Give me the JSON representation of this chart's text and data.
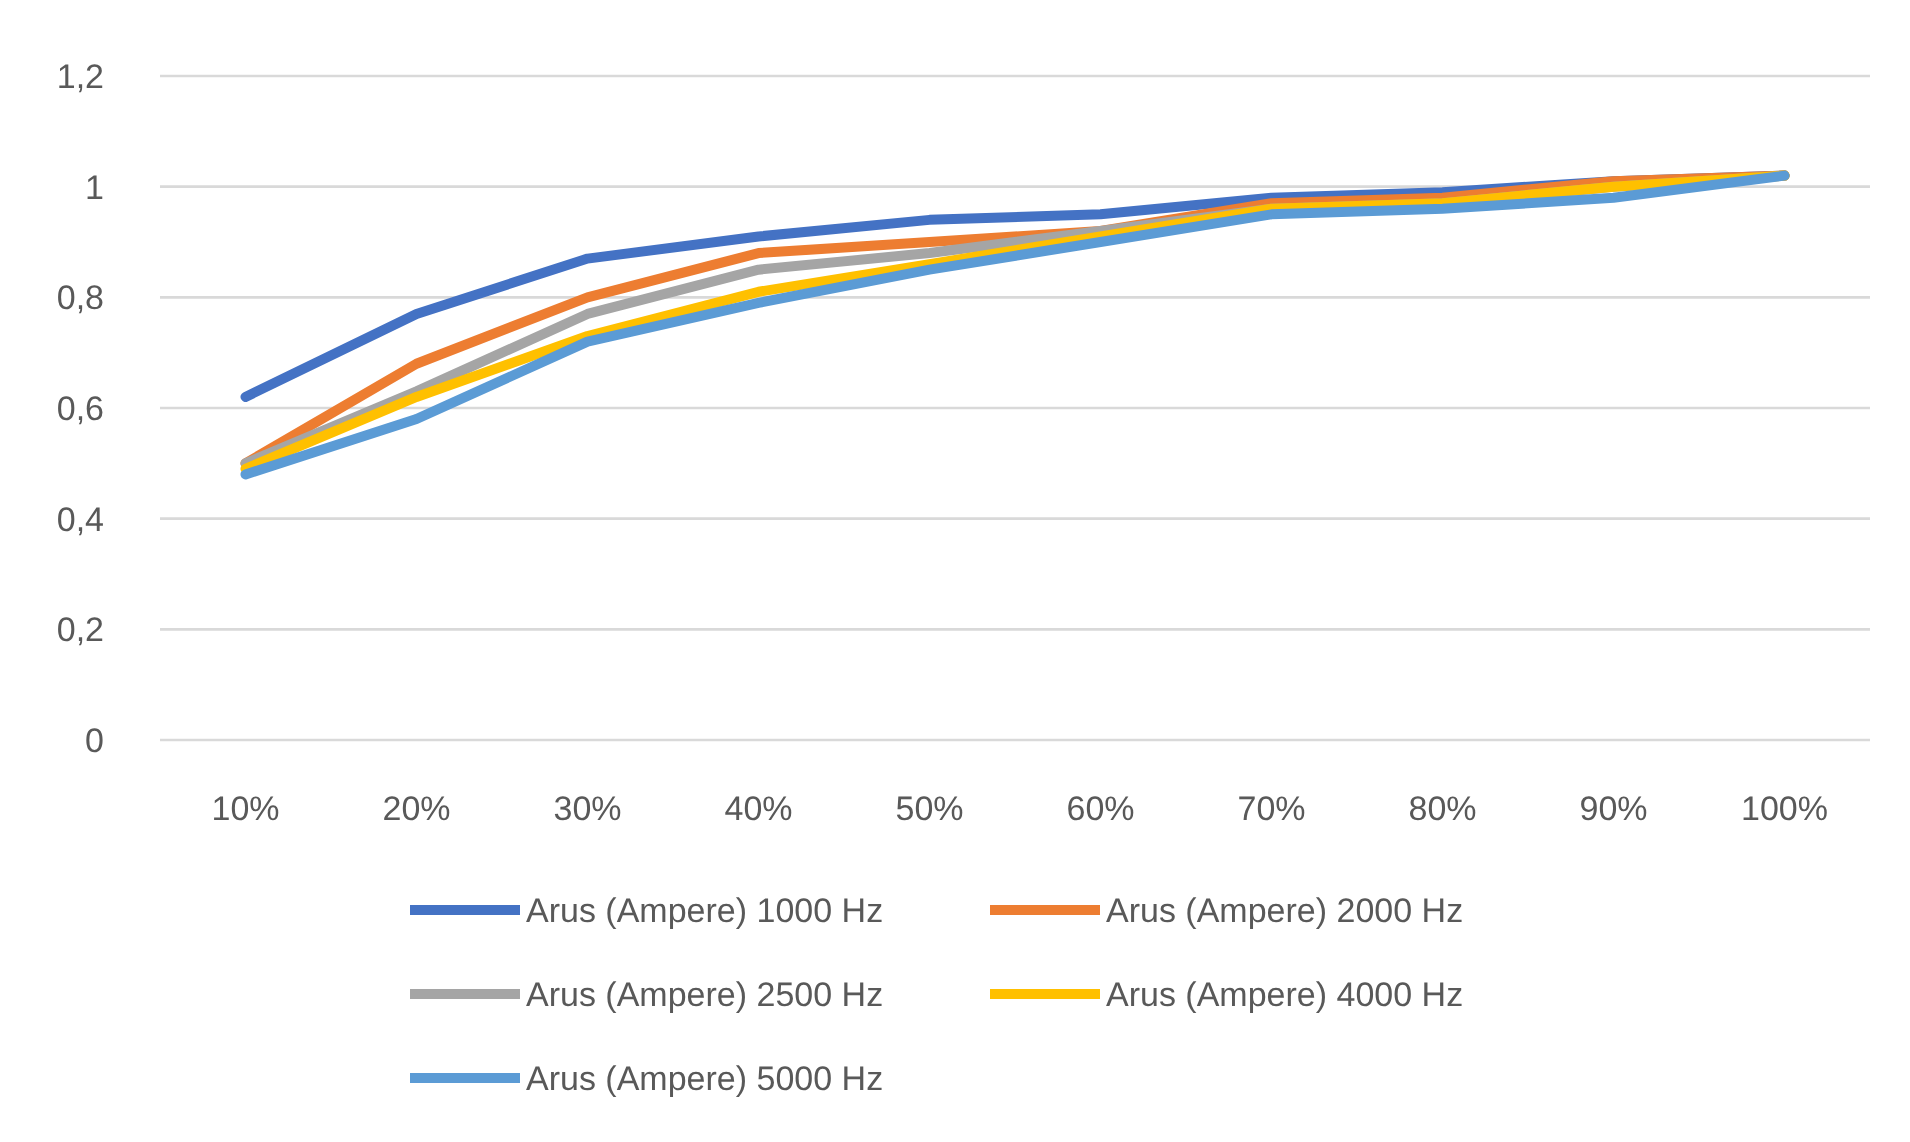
{
  "chart_data": {
    "type": "line",
    "categories": [
      "10%",
      "20%",
      "30%",
      "40%",
      "50%",
      "60%",
      "70%",
      "80%",
      "90%",
      "100%"
    ],
    "series": [
      {
        "name": "Arus (Ampere) 1000 Hz",
        "color": "#4472c4",
        "values": [
          0.62,
          0.77,
          0.87,
          0.91,
          0.94,
          0.95,
          0.98,
          0.99,
          1.01,
          1.02
        ]
      },
      {
        "name": "Arus (Ampere) 2000 Hz",
        "color": "#ed7d31",
        "values": [
          0.5,
          0.68,
          0.8,
          0.88,
          0.9,
          0.92,
          0.97,
          0.98,
          1.01,
          1.02
        ]
      },
      {
        "name": "Arus (Ampere) 2500 Hz",
        "color": "#a5a5a5",
        "values": [
          0.5,
          0.63,
          0.77,
          0.85,
          0.88,
          0.92,
          0.96,
          0.97,
          1.0,
          1.02
        ]
      },
      {
        "name": "Arus (Ampere) 4000 Hz",
        "color": "#ffc000",
        "values": [
          0.49,
          0.62,
          0.73,
          0.81,
          0.86,
          0.91,
          0.96,
          0.97,
          1.0,
          1.02
        ]
      },
      {
        "name": "Arus (Ampere) 5000 Hz",
        "color": "#5b9bd5",
        "values": [
          0.48,
          0.58,
          0.72,
          0.79,
          0.85,
          0.9,
          0.95,
          0.96,
          0.98,
          1.02
        ]
      }
    ],
    "ylim": [
      0,
      1.2
    ],
    "yticks": [
      0,
      {
        "value": 0.2,
        "label": "0,2"
      },
      {
        "value": 0.4,
        "label": "0,4"
      },
      {
        "value": 0.6,
        "label": "0,6"
      },
      {
        "value": 0.8,
        "label": "0,8"
      },
      1,
      {
        "value": 1.2,
        "label": "1,2"
      }
    ],
    "grid": "y",
    "legend": "bottom",
    "marker": "none",
    "line_style": "solid"
  }
}
